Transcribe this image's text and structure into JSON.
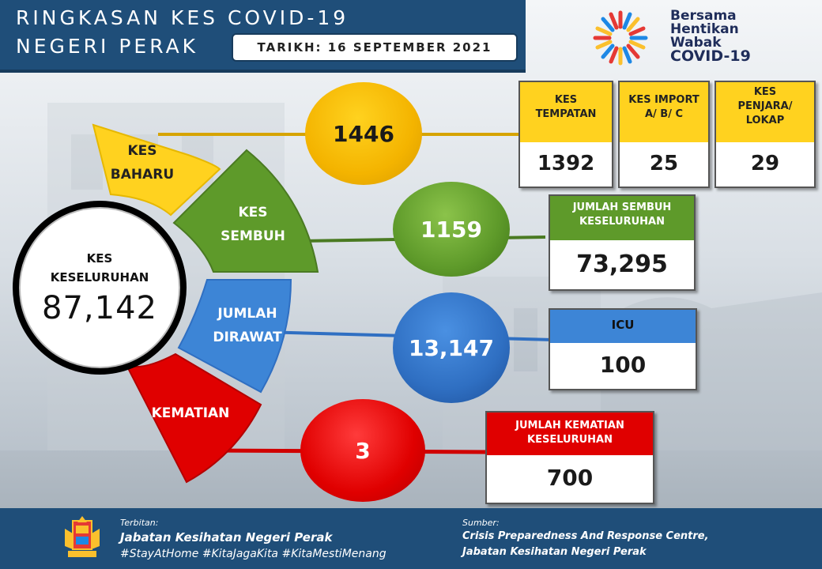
{
  "header": {
    "title_line1": "RINGKASAN KES COVID-19",
    "title_line2": "NEGERI PERAK",
    "date": "TARIKH: 16 SEPTEMBER 2021"
  },
  "logo": {
    "line1": "Bersama",
    "line2": "Hentikan",
    "line3": "Wabak",
    "line4": "COVID-19"
  },
  "total": {
    "label_line1": "KES",
    "label_line2": "KESELURUHAN",
    "value": "87,142"
  },
  "segments": {
    "baharu": {
      "line1": "KES",
      "line2": "BAHARU"
    },
    "sembuh": {
      "line1": "KES",
      "line2": "SEMBUH"
    },
    "dirawat": {
      "line1": "JUMLAH",
      "line2": "DIRAWAT"
    },
    "kematian": {
      "line1": "KEMATIAN"
    }
  },
  "orbs": {
    "baharu": "1446",
    "sembuh": "1159",
    "dirawat": "13,147",
    "kematian": "3"
  },
  "boxes": {
    "tempatan": {
      "head_line1": "KES",
      "head_line2": "TEMPATAN",
      "value": "1392"
    },
    "import": {
      "head_line1": "KES IMPORT",
      "head_line2": "A/ B/ C",
      "value": "25"
    },
    "penjara": {
      "head_line1": "KES",
      "head_line2": "PENJARA/",
      "head_line3": "LOKAP",
      "value": "29"
    },
    "sembuh_total": {
      "head_line1": "JUMLAH SEMBUH",
      "head_line2": "KESELURUHAN",
      "value": "73,295"
    },
    "icu": {
      "head_line1": "ICU",
      "value": "100"
    },
    "kematian_total": {
      "head_line1": "JUMLAH KEMATIAN",
      "head_line2": "KESELURUHAN",
      "value": "700"
    }
  },
  "footer": {
    "published_label": "Terbitan:",
    "publisher": "Jabatan Kesihatan Negeri Perak",
    "hashtags": "#StayAtHome #KitaJagaKita #KitaMestiMenang",
    "source_label": "Sumber:",
    "source_line1": "Crisis Preparedness And Response Centre,",
    "source_line2": "Jabatan Kesihatan Negeri Perak"
  },
  "colors": {
    "header_blue": "#1f4e79",
    "yellow": "#ffd21f",
    "green": "#5e9a2a",
    "blue": "#3d85d6",
    "red": "#e00000"
  }
}
